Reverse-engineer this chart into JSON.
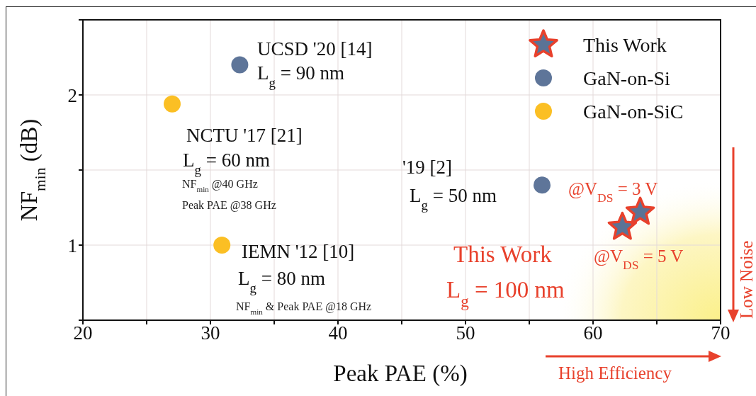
{
  "chart_data": {
    "type": "scatter",
    "xlabel": "Peak PAE (%)",
    "ylabel": "NF$_{min}$ (dB)",
    "xlim": [
      20,
      70
    ],
    "xticks": [
      20,
      {
        "value": 25,
        "label": null
      },
      30,
      {
        "value": 35,
        "label": null
      },
      40,
      {
        "value": 45,
        "label": null
      },
      50,
      {
        "value": 55,
        "label": null
      },
      60,
      {
        "value": 65,
        "label": null
      },
      70
    ],
    "ylim": [
      0.5,
      2.5
    ],
    "yticks": [
      {
        "value": 0.5,
        "label": null
      },
      1,
      {
        "value": 1.5,
        "label": null
      },
      2,
      {
        "value": 2.5,
        "label": null
      }
    ],
    "grid": true,
    "legend": "top right",
    "series": [
      {
        "name": "This Work",
        "color": "#5b7396",
        "marker": "star",
        "x": [
          62.3,
          63.7
        ],
        "values": [
          1.12,
          1.22
        ]
      },
      {
        "name": "GaN-on-Si",
        "color": "#5e7599",
        "marker": "circle",
        "x": [
          32.3,
          56.0
        ],
        "values": [
          2.2,
          1.4
        ]
      },
      {
        "name": "GaN-on-SiC",
        "color": "#fbbf24",
        "marker": "circle",
        "x": [
          27.0,
          30.9
        ],
        "values": [
          1.94,
          1.0
        ]
      }
    ],
    "annotations": [
      "UCSD '20 [14]",
      "L$_{g}$ = 90 nm",
      "NCTU '17 [21]",
      "L$_{g}$ = 60 nm",
      "NF$_{min}$ @40 GHz",
      "Peak PAE @38 GHz",
      "IEMN '12 [10]",
      "L$_{g}$ = 80 nm",
      "NF$_{min}$ &  Peak PAE @18 GHz",
      "'19 [2]",
      "L$_{g}$ = 50 nm",
      "@V$_{DS}$ = 3 V",
      "@V$_{DS}$ = 5 V",
      "This Work",
      "L$_{g}$ = 100 nm",
      "High Efficiency",
      "Low Noise"
    ]
  }
}
